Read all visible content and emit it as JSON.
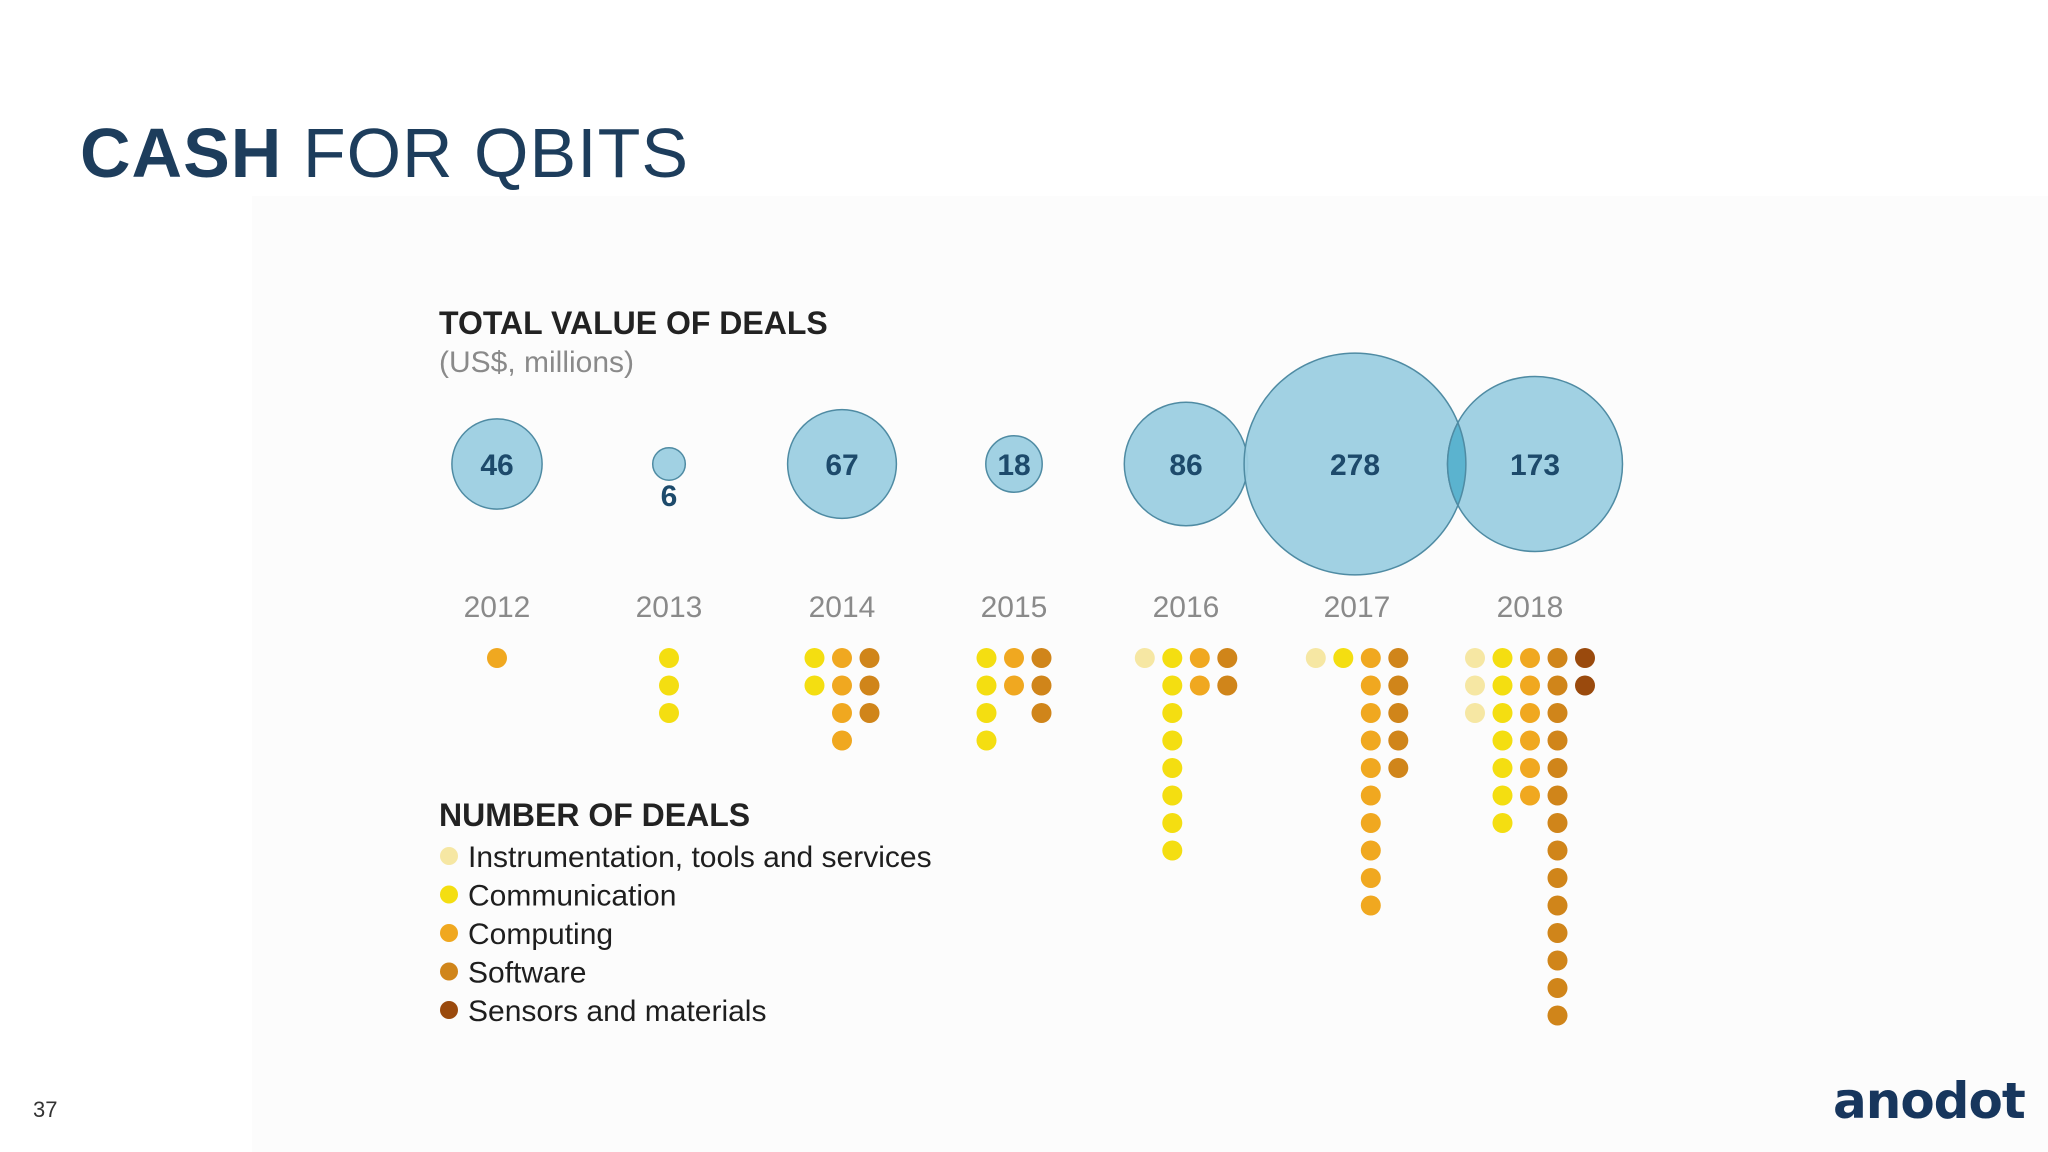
{
  "slide": {
    "title_bold": "CASH",
    "title_light": "FOR QBITS",
    "page_number": "37",
    "logo_text": "anodot"
  },
  "colors": {
    "bubble_fill": "#9ccfe2",
    "bubble_stroke": "#4f8ba3",
    "bubble_overlap": "#5bb3cf",
    "bubble_label": "#1d4a6b",
    "year_label": "#8a8a8a",
    "heading": "#222222",
    "subheading": "#8a8a8a",
    "legend_text": "#1e1e1e"
  },
  "chart_data": {
    "type": "bubble-dot",
    "title": "TOTAL VALUE OF DEALS",
    "subtitle": "(US$, millions)",
    "years": [
      "2012",
      "2013",
      "2014",
      "2015",
      "2016",
      "2017",
      "2018"
    ],
    "total_value_usd_millions": [
      46,
      6,
      67,
      18,
      86,
      278,
      173
    ],
    "value_labels": [
      "46",
      "6",
      "67",
      "18",
      "86",
      "278",
      "173"
    ],
    "deals_heading": "NUMBER OF DEALS",
    "categories": [
      {
        "name": "Instrumentation, tools and services",
        "color": "#f6e7a3"
      },
      {
        "name": "Communication",
        "color": "#f4de11"
      },
      {
        "name": "Computing",
        "color": "#f0a820"
      },
      {
        "name": "Software",
        "color": "#d0851a"
      },
      {
        "name": "Sensors and materials",
        "color": "#9a4a0d"
      }
    ],
    "deal_counts": {
      "2012": [
        0,
        0,
        1,
        0,
        0
      ],
      "2013": [
        0,
        3,
        0,
        0,
        0
      ],
      "2014": [
        0,
        2,
        4,
        3,
        0
      ],
      "2015": [
        0,
        4,
        2,
        3,
        0
      ],
      "2016": [
        1,
        8,
        2,
        2,
        0
      ],
      "2017": [
        1,
        1,
        10,
        5,
        0
      ],
      "2018": [
        3,
        7,
        6,
        14,
        2
      ]
    }
  }
}
